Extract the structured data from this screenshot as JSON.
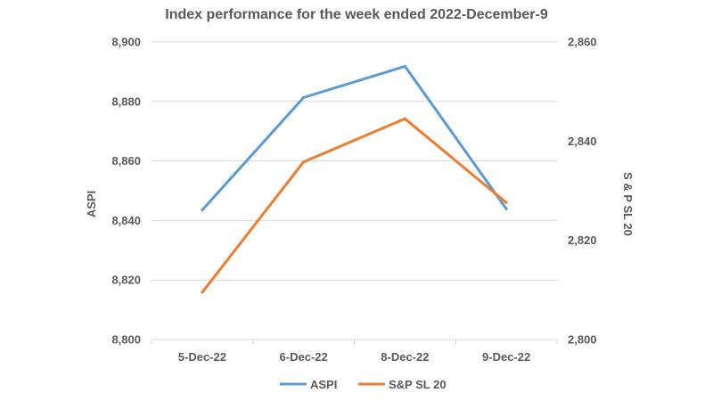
{
  "chart_data": {
    "type": "line",
    "title": "Index performance for the week ended 2022-December-9",
    "categories": [
      "5-Dec-22",
      "6-Dec-22",
      "8-Dec-22",
      "9-Dec-22"
    ],
    "series": [
      {
        "name": "ASPI",
        "axis": "left",
        "color": "#5B9BD5",
        "values": [
          8843.5,
          8881.3,
          8891.8,
          8843.9
        ]
      },
      {
        "name": "S&P SL 20",
        "axis": "right",
        "color": "#ED7D31",
        "values": [
          2809.5,
          2835.8,
          2844.5,
          2827.6
        ]
      }
    ],
    "ylabel_left": "ASPI",
    "ylabel_right": "S & P SL 20",
    "ylim_left": [
      8800,
      8900
    ],
    "ylim_right": [
      2800,
      2860
    ],
    "yticks_left": [
      "8,800",
      "8,820",
      "8,840",
      "8,860",
      "8,880",
      "8,900"
    ],
    "yticks_right": [
      "2,800",
      "2,820",
      "2,840",
      "2,860"
    ],
    "grid": true,
    "legend_position": "bottom"
  }
}
